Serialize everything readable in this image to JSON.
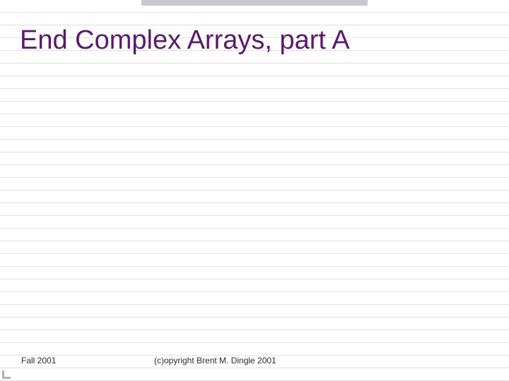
{
  "slide": {
    "title": "End Complex Arrays, part A",
    "title_color": "#5a1a6b",
    "title_fontsize": 38,
    "footer_left": "Fall 2001",
    "footer_center": "(c)opyright Brent M. Dingle 2001",
    "footer_fontsize": 12,
    "footer_color": "#2a2a2a",
    "background_color": "#ffffff",
    "rule_color": "#e0e0e0",
    "rule_spacing": 18,
    "top_bar_color": "#c8c8d0",
    "accent_color": "#b0b0c0"
  }
}
